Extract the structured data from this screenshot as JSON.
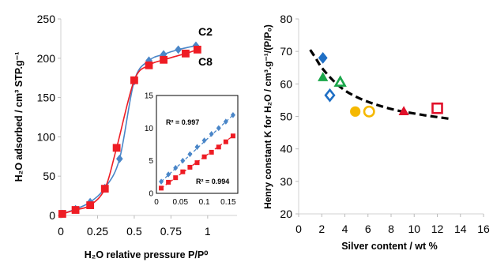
{
  "chart_data": [
    {
      "type": "line",
      "xlabel": "H₂O relative pressure P/P⁰",
      "ylabel": "H₂O adsorbed / cm³ STP.g⁻¹",
      "xlim": [
        0,
        1.2
      ],
      "ylim": [
        0,
        250
      ],
      "xticks": [
        "0",
        "0.25",
        "0.5",
        "0.75",
        "1"
      ],
      "yticks": [
        "0",
        "50",
        "100",
        "150",
        "200",
        "250"
      ],
      "grid": false,
      "series": [
        {
          "name": "C2",
          "color": "#4a86c8",
          "label_color": "#2eaadc",
          "marker": "diamond",
          "x": [
            0.01,
            0.1,
            0.2,
            0.3,
            0.4,
            0.5,
            0.6,
            0.7,
            0.8,
            0.92
          ],
          "y": [
            2,
            8,
            17,
            35,
            72,
            171,
            197,
            205,
            211,
            216
          ]
        },
        {
          "name": "C8",
          "color": "#ee1c24",
          "label_color": "#ee1c24",
          "marker": "square",
          "x": [
            0.01,
            0.1,
            0.2,
            0.3,
            0.38,
            0.5,
            0.6,
            0.7,
            0.85,
            0.93
          ],
          "y": [
            2,
            7,
            13,
            34,
            86,
            172,
            191,
            198,
            206,
            211
          ]
        }
      ],
      "series_labels": [
        "C2",
        "C8"
      ],
      "inset": {
        "xticks": [
          "0",
          "0.05",
          "0.1",
          "0.15"
        ],
        "yticks": [
          "0",
          "5",
          "10",
          "15"
        ],
        "xlim": [
          0,
          0.17
        ],
        "ylim": [
          0,
          15
        ],
        "series": [
          {
            "color": "#4a86c8",
            "marker": "diamond",
            "r2": "R² = 0.997",
            "x": [
              0.01,
              0.025,
              0.04,
              0.055,
              0.07,
              0.085,
              0.1,
              0.115,
              0.13,
              0.145,
              0.16
            ],
            "y": [
              1.8,
              2.9,
              3.9,
              5.0,
              6.0,
              7.1,
              8.1,
              9.1,
              10.0,
              11.0,
              12.0
            ]
          },
          {
            "color": "#ee1c24",
            "marker": "square",
            "r2": "R² = 0.994",
            "x": [
              0.01,
              0.025,
              0.04,
              0.055,
              0.07,
              0.085,
              0.1,
              0.115,
              0.13,
              0.145,
              0.16
            ],
            "y": [
              0.8,
              1.7,
              2.4,
              3.3,
              4.0,
              4.7,
              5.6,
              6.3,
              7.1,
              7.9,
              8.8
            ]
          }
        ]
      }
    },
    {
      "type": "scatter",
      "xlabel": "Silver content / wt %",
      "ylabel": "Henry constant K for H₂O / cm³.g⁻¹/(P/P₀)",
      "xlim": [
        0,
        16
      ],
      "ylim": [
        20,
        80
      ],
      "xticks": [
        "0",
        "2",
        "4",
        "6",
        "8",
        "10",
        "12",
        "14",
        "16"
      ],
      "yticks": [
        "20",
        "30",
        "40",
        "50",
        "60",
        "70",
        "80"
      ],
      "grid": false,
      "points": [
        {
          "x": 2.1,
          "y": 68,
          "marker": "diamond",
          "filled": true,
          "color": "#1f6fc5"
        },
        {
          "x": 2.7,
          "y": 56.5,
          "marker": "diamond",
          "filled": false,
          "color": "#1f6fc5"
        },
        {
          "x": 2.1,
          "y": 62,
          "marker": "triangle",
          "filled": true,
          "color": "#1aa64a"
        },
        {
          "x": 3.6,
          "y": 60.5,
          "marker": "triangle",
          "filled": false,
          "color": "#1aa64a"
        },
        {
          "x": 4.9,
          "y": 51.5,
          "marker": "circle",
          "filled": true,
          "color": "#f5b800"
        },
        {
          "x": 6.1,
          "y": 51.5,
          "marker": "circle",
          "filled": false,
          "color": "#f5b800"
        },
        {
          "x": 9.1,
          "y": 51.5,
          "marker": "triangle",
          "filled": true,
          "color": "#e0102a"
        },
        {
          "x": 12.0,
          "y": 52.5,
          "marker": "square",
          "filled": false,
          "color": "#e0102a"
        }
      ],
      "fit": {
        "x": [
          1,
          1.5,
          2,
          3,
          4,
          5,
          6,
          7,
          8,
          9,
          10,
          11,
          12,
          13
        ],
        "y": [
          70.5,
          67.8,
          65.0,
          61.0,
          58.0,
          56.0,
          54.5,
          53.3,
          52.3,
          51.5,
          50.9,
          50.3,
          49.8,
          49.3
        ],
        "color": "#000000",
        "style": "dashed"
      }
    }
  ]
}
